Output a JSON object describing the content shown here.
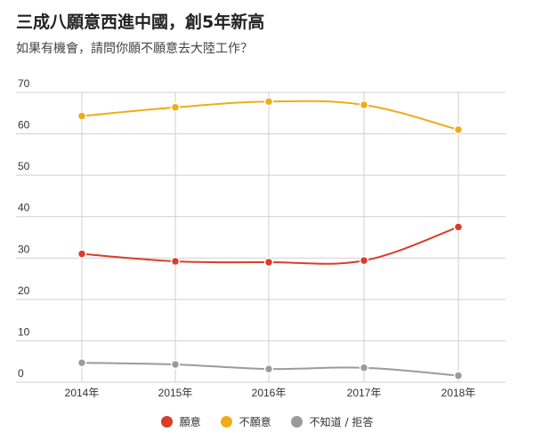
{
  "chart_data": {
    "type": "line",
    "title": "三成八願意西進中國，創5年新高",
    "subtitle": "如果有機會，請問你願不願意去大陸工作？",
    "categories": [
      "2014年",
      "2015年",
      "2016年",
      "2017年",
      "2018年"
    ],
    "ylim": [
      0,
      70
    ],
    "yticks": [
      0,
      10,
      20,
      30,
      40,
      50,
      60,
      70
    ],
    "grid": true,
    "legend_position": "bottom",
    "series": [
      {
        "name": "願意",
        "color": "#d93d2a",
        "values": [
          31,
          29.2,
          29,
          29.4,
          37.5
        ]
      },
      {
        "name": "不願意",
        "color": "#f0ac18",
        "values": [
          64.3,
          66.4,
          67.8,
          67,
          61
        ]
      },
      {
        "name": "不知道 / 拒答",
        "color": "#9b9b9b",
        "values": [
          4.7,
          4.3,
          3.2,
          3.5,
          1.6
        ]
      }
    ]
  }
}
